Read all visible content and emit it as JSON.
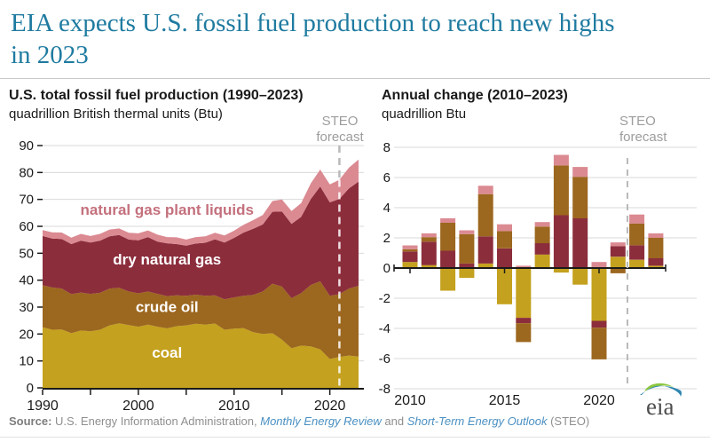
{
  "header": {
    "title_lines": [
      "EIA expects U.S. fossil fuel production to reach new highs",
      "in 2023"
    ]
  },
  "left_chart": {
    "title": "U.S. total fossil fuel production (1990–2023)",
    "subtitle": "quadrillion British thermal units (Btu)",
    "steo_label": "STEO forecast"
  },
  "right_chart": {
    "title": "Annual change (2010–2023)",
    "subtitle": "quadrillion Btu",
    "steo_label": "STEO forecast"
  },
  "source": {
    "label": "Source:",
    "text1": " U.S. Energy Information Administration, ",
    "link1": "Monthly Energy Review",
    "text2": " and ",
    "link2": "Short-Term Energy Outlook",
    "text3": " (STEO)"
  },
  "logo": {
    "text": "eia"
  },
  "colors": {
    "title_teal": "#1F7BA0",
    "coal": "#C4A11E",
    "crude_oil": "#9C671F",
    "dry_natural_gas": "#8C2D3C",
    "natural_gas_plant_liquids": "#DB8A92",
    "ngpl_label_pink": "#C4707D",
    "gridline": "#DADADA",
    "axis": "#1a1a1a",
    "forecast_dash": "#B9B9B9",
    "steo_gray": "#9D9D9D",
    "link_blue": "#4A90C2"
  },
  "chart_data": [
    {
      "type": "area",
      "stacked": true,
      "title": "U.S. total fossil fuel production (1990–2023)",
      "ylabel": "quadrillion British thermal units (Btu)",
      "x_start": 1990,
      "x_end": 2023,
      "ylim": [
        0,
        90
      ],
      "ytick_step": 10,
      "xticks_labeled": [
        1990,
        2000,
        2010,
        2020
      ],
      "xticks_minor_step": 5,
      "grid": true,
      "forecast_line_x": 2021,
      "forecast_label": "STEO forecast",
      "stack_order": [
        "coal",
        "crude_oil",
        "dry_natural_gas",
        "natural_gas_plant_liquids"
      ],
      "series": [
        {
          "name": "coal",
          "label": "coal",
          "color": "#C4A11E",
          "label_color": "#ffffff",
          "label_x": 2003,
          "label_y": 11.2,
          "values": [
            22.5,
            21.6,
            21.7,
            20.3,
            21.3,
            21.0,
            21.6,
            23.2,
            24.0,
            23.3,
            22.7,
            23.5,
            22.7,
            22.1,
            22.9,
            23.2,
            23.8,
            23.5,
            23.9,
            21.6,
            22.0,
            22.2,
            20.7,
            20.0,
            20.3,
            17.9,
            14.7,
            15.7,
            15.4,
            14.3,
            10.7,
            11.5,
            12.0,
            11.6
          ]
        },
        {
          "name": "crude_oil",
          "label": "crude oil",
          "color": "#9C671F",
          "label_color": "#ffffff",
          "label_x": 2003,
          "label_y": 28.2,
          "values": [
            15.6,
            15.7,
            15.2,
            14.5,
            14.1,
            13.9,
            13.7,
            13.7,
            13.2,
            12.5,
            12.4,
            12.3,
            12.2,
            12.0,
            11.5,
            11.0,
            10.8,
            10.7,
            10.5,
            11.3,
            11.6,
            12.0,
            13.8,
            15.8,
            18.4,
            19.7,
            18.6,
            19.5,
            22.8,
            25.3,
            23.5,
            23.3,
            24.9,
            26.3
          ]
        },
        {
          "name": "dry_natural_gas",
          "label": "dry natural gas",
          "color": "#8C2D3C",
          "label_color": "#ffffff",
          "label_x": 2003,
          "label_y": 45.8,
          "values": [
            18.3,
            18.2,
            18.4,
            18.6,
            19.3,
            19.1,
            19.4,
            19.4,
            19.6,
            19.3,
            19.7,
            20.2,
            19.4,
            19.6,
            19.0,
            18.6,
            19.0,
            19.7,
            20.8,
            21.1,
            22.1,
            23.5,
            24.6,
            24.9,
            26.7,
            27.9,
            27.6,
            28.3,
            31.9,
            35.2,
            34.7,
            35.4,
            37.2,
            38.7
          ]
        },
        {
          "name": "natural_gas_plant_liquids",
          "label": "natural gas plant liquids",
          "color": "#DB8A92",
          "label_color": "#C4707D",
          "label_x": 2003,
          "label_y": 64.3,
          "values": [
            2.2,
            2.3,
            2.4,
            2.4,
            2.5,
            2.4,
            2.5,
            2.5,
            2.4,
            2.5,
            2.6,
            2.5,
            2.6,
            2.3,
            2.5,
            2.3,
            2.4,
            2.4,
            2.4,
            2.6,
            2.7,
            2.9,
            3.2,
            3.5,
            4.0,
            4.5,
            4.8,
            5.1,
            5.8,
            6.3,
            6.7,
            7.1,
            7.7,
            8.2
          ]
        }
      ]
    },
    {
      "type": "bar",
      "stacked": true,
      "title": "Annual change (2010–2023)",
      "ylabel": "quadrillion Btu",
      "categories": [
        2010,
        2011,
        2012,
        2013,
        2014,
        2015,
        2016,
        2017,
        2018,
        2019,
        2020,
        2021,
        2022,
        2023
      ],
      "ylim": [
        -8,
        8
      ],
      "ytick_step": 2,
      "xticks_labeled": [
        2010,
        2015,
        2020
      ],
      "grid": true,
      "forecast_line_between": [
        2021,
        2022
      ],
      "forecast_label": "STEO forecast",
      "stack_order": [
        "coal",
        "dry_natural_gas",
        "crude_oil",
        "natural_gas_plant_liquids"
      ],
      "series": [
        {
          "name": "coal",
          "color": "#C4A11E",
          "values": [
            0.4,
            0.2,
            -1.5,
            -0.65,
            0.3,
            -2.4,
            -3.3,
            0.9,
            -0.3,
            -1.1,
            -3.5,
            0.75,
            0.55,
            0.15
          ]
        },
        {
          "name": "dry_natural_gas",
          "color": "#8C2D3C",
          "values": [
            0.7,
            1.55,
            1.15,
            0.3,
            1.8,
            1.3,
            -0.35,
            0.75,
            3.5,
            3.3,
            -0.45,
            0.7,
            0.95,
            0.5
          ]
        },
        {
          "name": "crude_oil",
          "color": "#9C671F",
          "values": [
            0.15,
            0.3,
            1.85,
            1.95,
            2.8,
            1.15,
            -1.25,
            1.1,
            3.3,
            2.75,
            -2.1,
            -0.35,
            1.45,
            1.35
          ]
        },
        {
          "name": "natural_gas_plant_liquids",
          "color": "#DB8A92",
          "values": [
            0.25,
            0.25,
            0.3,
            0.25,
            0.55,
            0.45,
            0.15,
            0.3,
            0.7,
            0.65,
            0.4,
            0.25,
            0.6,
            0.3
          ]
        }
      ]
    }
  ]
}
